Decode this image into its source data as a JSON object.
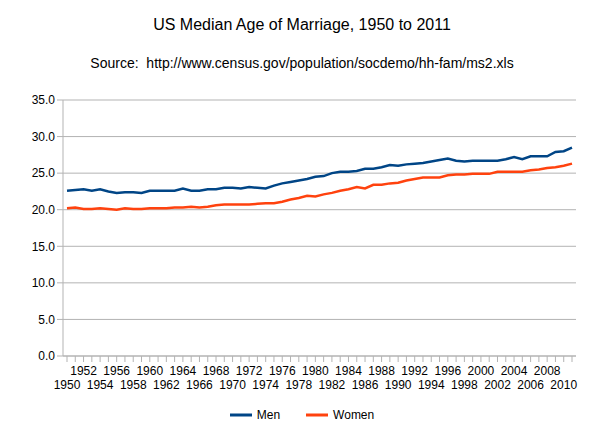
{
  "chart_data": {
    "type": "line",
    "title": "US Median Age of Marriage, 1950 to 2011",
    "subtitle": "Source:  http://www.census.gov/population/socdemo/hh-fam/ms2.xls",
    "categories": [
      "1950",
      null,
      "1952",
      null,
      "1954",
      null,
      "1956",
      null,
      "1958",
      null,
      "1960",
      null,
      "1962",
      null,
      "1964",
      null,
      "1966",
      null,
      "1968",
      null,
      "1970",
      null,
      "1972",
      null,
      "1974",
      null,
      "1976",
      null,
      "1978",
      null,
      "1980",
      null,
      "1982",
      null,
      "1984",
      null,
      "1986",
      null,
      "1988",
      null,
      "1990",
      null,
      "1992",
      null,
      "1994",
      null,
      "1996",
      null,
      "1998",
      null,
      "2000",
      null,
      "2002",
      null,
      "2004",
      null,
      "2006",
      null,
      "2008",
      null,
      "2010",
      null
    ],
    "series": [
      {
        "name": "Men",
        "color": "#004586",
        "values": [
          22.6,
          22.7,
          22.8,
          22.6,
          22.8,
          22.5,
          22.3,
          22.4,
          22.4,
          22.3,
          22.6,
          22.6,
          22.6,
          22.6,
          22.9,
          22.6,
          22.6,
          22.8,
          22.8,
          23.0,
          23.0,
          22.9,
          23.1,
          23.0,
          22.9,
          23.3,
          23.6,
          23.8,
          24.0,
          24.2,
          24.5,
          24.6,
          25.0,
          25.2,
          25.2,
          25.3,
          25.6,
          25.6,
          25.8,
          26.1,
          26.0,
          26.2,
          26.3,
          26.4,
          26.6,
          26.8,
          27.0,
          26.7,
          26.6,
          26.7,
          26.7,
          26.7,
          26.7,
          26.9,
          27.2,
          26.9,
          27.3,
          27.3,
          27.3,
          27.9,
          28.0,
          28.5
        ]
      },
      {
        "name": "Women",
        "color": "#ff420e",
        "values": [
          20.2,
          20.3,
          20.1,
          20.1,
          20.2,
          20.1,
          20.0,
          20.2,
          20.1,
          20.1,
          20.2,
          20.2,
          20.2,
          20.3,
          20.3,
          20.4,
          20.3,
          20.4,
          20.6,
          20.7,
          20.7,
          20.7,
          20.7,
          20.8,
          20.9,
          20.9,
          21.1,
          21.4,
          21.6,
          21.9,
          21.8,
          22.1,
          22.3,
          22.6,
          22.8,
          23.1,
          22.9,
          23.4,
          23.4,
          23.6,
          23.7,
          24.0,
          24.2,
          24.4,
          24.4,
          24.4,
          24.7,
          24.8,
          24.8,
          24.9,
          24.9,
          24.9,
          25.2,
          25.2,
          25.2,
          25.2,
          25.4,
          25.5,
          25.7,
          25.8,
          26.0,
          26.3
        ]
      }
    ],
    "ylim": [
      0,
      35
    ],
    "yticks": [
      {
        "value": 0,
        "label": "0.0"
      },
      {
        "value": 5,
        "label": "5.0"
      },
      {
        "value": 10,
        "label": "10.0"
      },
      {
        "value": 15,
        "label": "15.0"
      },
      {
        "value": 20,
        "label": "20.0"
      },
      {
        "value": 25,
        "label": "25.0"
      },
      {
        "value": 30,
        "label": "30.0"
      },
      {
        "value": 35,
        "label": "35.0"
      }
    ],
    "grid": true,
    "legend": "bottom"
  }
}
